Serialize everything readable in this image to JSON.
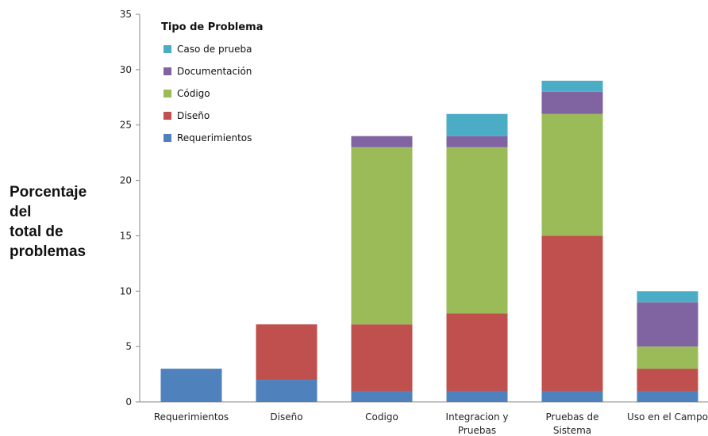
{
  "chart_data": {
    "type": "bar",
    "stacked": true,
    "categories": [
      [
        "Requerimientos"
      ],
      [
        "Diseño"
      ],
      [
        "Codigo"
      ],
      [
        "Integracion y",
        "Pruebas"
      ],
      [
        "Pruebas de",
        "Sistema"
      ],
      [
        "Uso en el Campo"
      ]
    ],
    "series": [
      {
        "name": "Requerimientos",
        "color": "#4f81bd",
        "values": [
          3,
          2,
          1,
          1,
          1,
          1
        ]
      },
      {
        "name": "Diseño",
        "color": "#c0504d",
        "values": [
          0,
          5,
          6,
          7,
          14,
          2
        ]
      },
      {
        "name": "Código",
        "color": "#9bbb59",
        "values": [
          0,
          0,
          16,
          15,
          11,
          2
        ]
      },
      {
        "name": "Documentación",
        "color": "#8064a2",
        "values": [
          0,
          0,
          1,
          1,
          2,
          4
        ]
      },
      {
        "name": "Caso de prueba",
        "color": "#4bacc6",
        "values": [
          0,
          0,
          0,
          2,
          1,
          1
        ]
      }
    ],
    "ylabel": [
      "Porcentaje",
      "del",
      "total de",
      "problemas"
    ],
    "ylim": [
      0,
      35
    ],
    "yticks": [
      0,
      5,
      10,
      15,
      20,
      25,
      30,
      35
    ],
    "grid": false,
    "legend": {
      "title": "Tipo de Problema",
      "position": "top-left",
      "order": [
        "Caso de prueba",
        "Documentación",
        "Código",
        "Diseño",
        "Requerimientos"
      ]
    }
  }
}
